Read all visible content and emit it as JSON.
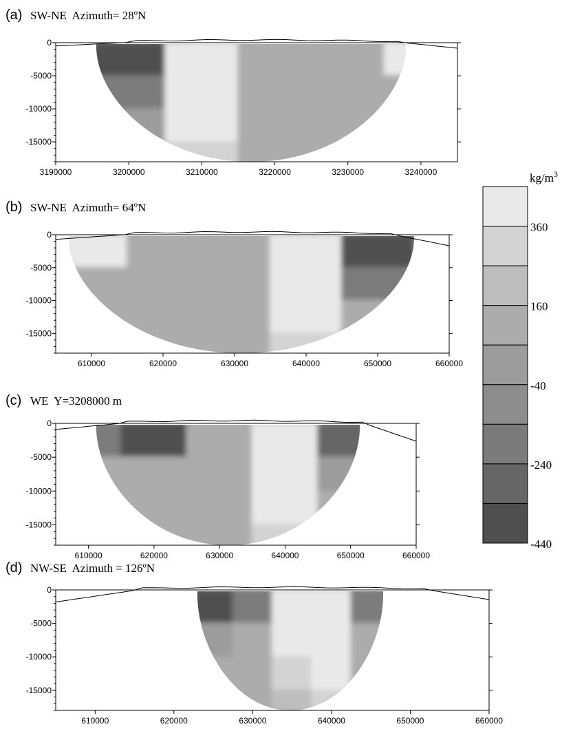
{
  "colorbar": {
    "unit_prefix": "kg/m",
    "unit_exp": "3",
    "colors": [
      "#4f4f4f",
      "#666666",
      "#7b7b7b",
      "#8d8d8d",
      "#9c9c9c",
      "#acacac",
      "#bdbdbd",
      "#d3d3d3",
      "#e9e9e9"
    ],
    "boundaries": [
      -440,
      -340,
      -240,
      -140,
      -40,
      60,
      160,
      260,
      360,
      460
    ],
    "tick_labels": [
      "360",
      "160",
      "-40",
      "-240",
      "-440"
    ]
  },
  "chart_data": [
    {
      "type": "heatmap",
      "panel_label": "(a)",
      "title": "SW-NE  Azimuth= 28ºN",
      "xlim": [
        3190000,
        3245000
      ],
      "ylim": [
        -18000,
        0
      ],
      "xticks": [
        "3190000",
        "3200000",
        "3210000",
        "3220000",
        "3230000",
        "3240000"
      ],
      "yticks": [
        "0",
        "-5000",
        "-10000",
        "-15000"
      ],
      "x": [
        3200000,
        3210000,
        3220000,
        3230000,
        3240000
      ],
      "depth": [
        -2500,
        -7500,
        -12500,
        -17500
      ],
      "values": [
        [
          -440,
          460,
          60,
          60,
          460
        ],
        [
          -240,
          460,
          60,
          60,
          60
        ],
        [
          -40,
          360,
          60,
          60,
          60
        ],
        [
          -40,
          260,
          60,
          60,
          60
        ]
      ]
    },
    {
      "type": "heatmap",
      "panel_label": "(b)",
      "title": "SW-NE  Azimuth= 64ºN",
      "xlim": [
        605000,
        660000
      ],
      "ylim": [
        -18000,
        0
      ],
      "xticks": [
        "610000",
        "620000",
        "630000",
        "640000",
        "650000",
        "660000"
      ],
      "yticks": [
        "0",
        "-5000",
        "-10000",
        "-15000"
      ],
      "x": [
        610000,
        620000,
        630000,
        640000,
        650000
      ],
      "depth": [
        -2500,
        -7500,
        -12500,
        -17500
      ],
      "values": [
        [
          360,
          60,
          60,
          460,
          -440
        ],
        [
          60,
          60,
          60,
          460,
          -240
        ],
        [
          60,
          60,
          60,
          360,
          60
        ],
        [
          60,
          60,
          60,
          260,
          60
        ]
      ]
    },
    {
      "type": "heatmap",
      "panel_label": "(c)",
      "title": "WE  Y=3208000 m",
      "xlim": [
        605000,
        660000
      ],
      "ylim": [
        -18000,
        0
      ],
      "xticks": [
        "610000",
        "620000",
        "630000",
        "640000",
        "650000",
        "660000"
      ],
      "yticks": [
        "0",
        "-5000",
        "-10000",
        "-15000"
      ],
      "x": [
        610000,
        620000,
        630000,
        640000,
        650000
      ],
      "depth": [
        -2500,
        -7500,
        -12500,
        -17500
      ],
      "values": [
        [
          -240,
          -440,
          60,
          460,
          -340
        ],
        [
          60,
          60,
          60,
          460,
          -40
        ],
        [
          60,
          60,
          60,
          360,
          60
        ],
        [
          60,
          60,
          60,
          260,
          60
        ]
      ]
    },
    {
      "type": "heatmap",
      "panel_label": "(d)",
      "title": "NW-SE  Azimuth = 126ºN",
      "xlim": [
        605000,
        660000
      ],
      "ylim": [
        -18000,
        0
      ],
      "xticks": [
        "610000",
        "620000",
        "630000",
        "640000",
        "650000",
        "660000"
      ],
      "yticks": [
        "0",
        "-5000",
        "-10000",
        "-15000"
      ],
      "x": [
        625000,
        630000,
        635000,
        640000,
        645000
      ],
      "depth": [
        -2500,
        -7500,
        -12500,
        -17500
      ],
      "values": [
        [
          -440,
          -240,
          460,
          460,
          -240
        ],
        [
          -40,
          60,
          460,
          460,
          60
        ],
        [
          60,
          60,
          260,
          360,
          60
        ],
        [
          60,
          60,
          160,
          260,
          60
        ]
      ]
    }
  ]
}
